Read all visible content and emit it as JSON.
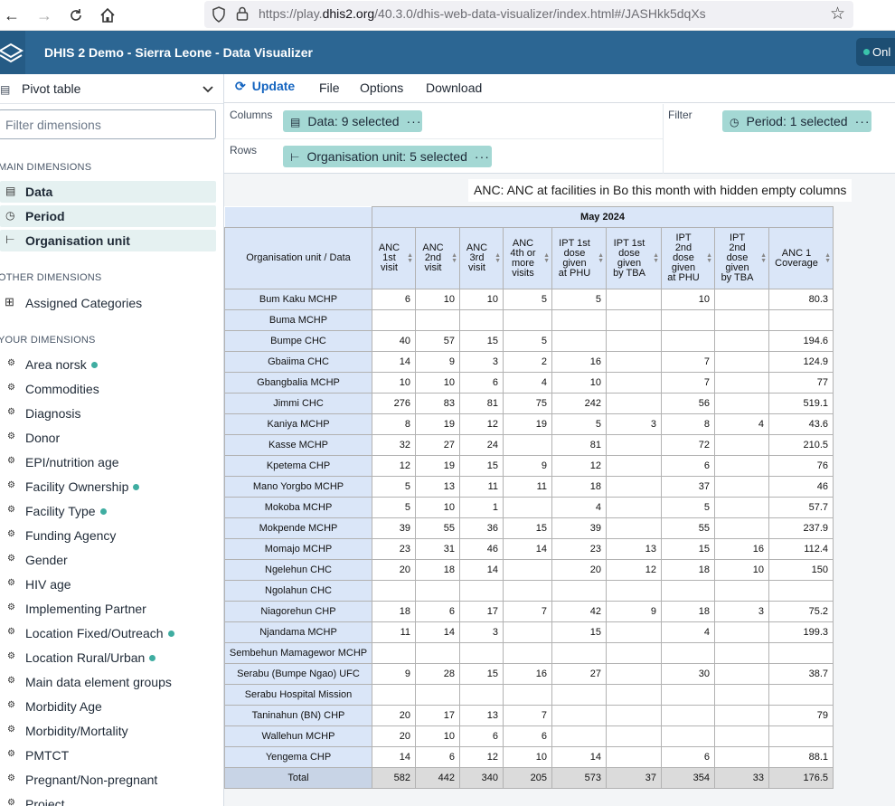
{
  "browser": {
    "url_prefix": "https://play.",
    "url_domain": "dhis2.org",
    "url_rest": "/40.3.0/dhis-web-data-visualizer/index.html#/JASHkk5dqXs"
  },
  "header": {
    "title": "DHIS 2 Demo - Sierra Leone - Data Visualizer",
    "online_label": "Onl"
  },
  "sidebar": {
    "vis_type": "Pivot table",
    "filter_placeholder": "Filter dimensions",
    "main_heading": "MAIN DIMENSIONS",
    "main_dims": [
      "Data",
      "Period",
      "Organisation unit"
    ],
    "other_heading": "OTHER DIMENSIONS",
    "other_dims": [
      "Assigned Categories"
    ],
    "your_heading": "YOUR DIMENSIONS",
    "your_dims": [
      {
        "label": "Area norsk",
        "active": true
      },
      {
        "label": "Commodities",
        "active": false
      },
      {
        "label": "Diagnosis",
        "active": false
      },
      {
        "label": "Donor",
        "active": false
      },
      {
        "label": "EPI/nutrition age",
        "active": false
      },
      {
        "label": "Facility Ownership",
        "active": true
      },
      {
        "label": "Facility Type",
        "active": true
      },
      {
        "label": "Funding Agency",
        "active": false
      },
      {
        "label": "Gender",
        "active": false
      },
      {
        "label": "HIV age",
        "active": false
      },
      {
        "label": "Implementing Partner",
        "active": false
      },
      {
        "label": "Location Fixed/Outreach",
        "active": true
      },
      {
        "label": "Location Rural/Urban",
        "active": true
      },
      {
        "label": "Main data element groups",
        "active": false
      },
      {
        "label": "Morbidity Age",
        "active": false
      },
      {
        "label": "Morbidity/Mortality",
        "active": false
      },
      {
        "label": "PMTCT",
        "active": false
      },
      {
        "label": "Pregnant/Non-pregnant",
        "active": false
      },
      {
        "label": "Project",
        "active": false
      }
    ]
  },
  "menubar": {
    "update": "Update",
    "file": "File",
    "options": "Options",
    "download": "Download"
  },
  "layout": {
    "columns_label": "Columns",
    "rows_label": "Rows",
    "filter_label": "Filter",
    "columns_chip": "Data: 9 selected",
    "rows_chip": "Organisation unit: 5 selected",
    "filter_chip": "Period: 1 selected",
    "chip_more": "···"
  },
  "table": {
    "title": "ANC: ANC at facilities in Bo this month with hidden empty columns",
    "period": "May 2024",
    "corner": "Organisation unit / Data",
    "columns": [
      [
        "ANC",
        "1st",
        "visit"
      ],
      [
        "ANC",
        "2nd",
        "visit"
      ],
      [
        "ANC",
        "3rd",
        "visit"
      ],
      [
        "ANC",
        "4th or",
        "more",
        "visits"
      ],
      [
        "IPT 1st",
        "dose",
        "given",
        "at PHU"
      ],
      [
        "IPT 1st",
        "dose",
        "given",
        "by TBA"
      ],
      [
        "IPT",
        "2nd",
        "dose",
        "given",
        "at PHU"
      ],
      [
        "IPT",
        "2nd",
        "dose",
        "given",
        "by TBA"
      ],
      [
        "ANC 1",
        "Coverage"
      ]
    ],
    "rows": [
      {
        "ou": "Bum Kaku MCHP",
        "v": [
          "6",
          "10",
          "10",
          "5",
          "5",
          "",
          "10",
          "",
          "80.3"
        ]
      },
      {
        "ou": "Buma MCHP",
        "v": [
          "",
          "",
          "",
          "",
          "",
          "",
          "",
          "",
          ""
        ]
      },
      {
        "ou": "Bumpe CHC",
        "v": [
          "40",
          "57",
          "15",
          "5",
          "",
          "",
          "",
          "",
          "194.6"
        ]
      },
      {
        "ou": "Gbaiima CHC",
        "v": [
          "14",
          "9",
          "3",
          "2",
          "16",
          "",
          "7",
          "",
          "124.9"
        ]
      },
      {
        "ou": "Gbangbalia MCHP",
        "v": [
          "10",
          "10",
          "6",
          "4",
          "10",
          "",
          "7",
          "",
          "77"
        ]
      },
      {
        "ou": "Jimmi CHC",
        "v": [
          "276",
          "83",
          "81",
          "75",
          "242",
          "",
          "56",
          "",
          "519.1"
        ]
      },
      {
        "ou": "Kaniya MCHP",
        "v": [
          "8",
          "19",
          "12",
          "19",
          "5",
          "3",
          "8",
          "4",
          "43.6"
        ]
      },
      {
        "ou": "Kasse MCHP",
        "v": [
          "32",
          "27",
          "24",
          "",
          "81",
          "",
          "72",
          "",
          "210.5"
        ]
      },
      {
        "ou": "Kpetema CHP",
        "v": [
          "12",
          "19",
          "15",
          "9",
          "12",
          "",
          "6",
          "",
          "76"
        ]
      },
      {
        "ou": "Mano Yorgbo MCHP",
        "v": [
          "5",
          "13",
          "11",
          "11",
          "18",
          "",
          "37",
          "",
          "46"
        ]
      },
      {
        "ou": "Mokoba MCHP",
        "v": [
          "5",
          "10",
          "1",
          "",
          "4",
          "",
          "5",
          "",
          "57.7"
        ]
      },
      {
        "ou": "Mokpende MCHP",
        "v": [
          "39",
          "55",
          "36",
          "15",
          "39",
          "",
          "55",
          "",
          "237.9"
        ]
      },
      {
        "ou": "Momajo MCHP",
        "v": [
          "23",
          "31",
          "46",
          "14",
          "23",
          "13",
          "15",
          "16",
          "112.4"
        ]
      },
      {
        "ou": "Ngelehun CHC",
        "v": [
          "20",
          "18",
          "14",
          "",
          "20",
          "12",
          "18",
          "10",
          "150"
        ]
      },
      {
        "ou": "Ngolahun CHC",
        "v": [
          "",
          "",
          "",
          "",
          "",
          "",
          "",
          "",
          ""
        ]
      },
      {
        "ou": "Niagorehun CHP",
        "v": [
          "18",
          "6",
          "17",
          "7",
          "42",
          "9",
          "18",
          "3",
          "75.2"
        ]
      },
      {
        "ou": "Njandama MCHP",
        "v": [
          "11",
          "14",
          "3",
          "",
          "15",
          "",
          "4",
          "",
          "199.3"
        ]
      },
      {
        "ou": "Sembehun Mamagewor MCHP",
        "v": [
          "",
          "",
          "",
          "",
          "",
          "",
          "",
          "",
          ""
        ]
      },
      {
        "ou": "Serabu (Bumpe Ngao) UFC",
        "v": [
          "9",
          "28",
          "15",
          "16",
          "27",
          "",
          "30",
          "",
          "38.7"
        ]
      },
      {
        "ou": "Serabu Hospital Mission",
        "v": [
          "",
          "",
          "",
          "",
          "",
          "",
          "",
          "",
          ""
        ]
      },
      {
        "ou": "Taninahun (BN) CHP",
        "v": [
          "20",
          "17",
          "13",
          "7",
          "",
          "",
          "",
          "",
          "79"
        ]
      },
      {
        "ou": "Wallehun MCHP",
        "v": [
          "20",
          "10",
          "6",
          "6",
          "",
          "",
          "",
          "",
          ""
        ]
      },
      {
        "ou": "Yengema CHP",
        "v": [
          "14",
          "6",
          "12",
          "10",
          "14",
          "",
          "6",
          "",
          "88.1"
        ]
      }
    ],
    "total": {
      "ou": "Total",
      "v": [
        "582",
        "442",
        "340",
        "205",
        "573",
        "37",
        "354",
        "33",
        "176.5"
      ]
    }
  }
}
